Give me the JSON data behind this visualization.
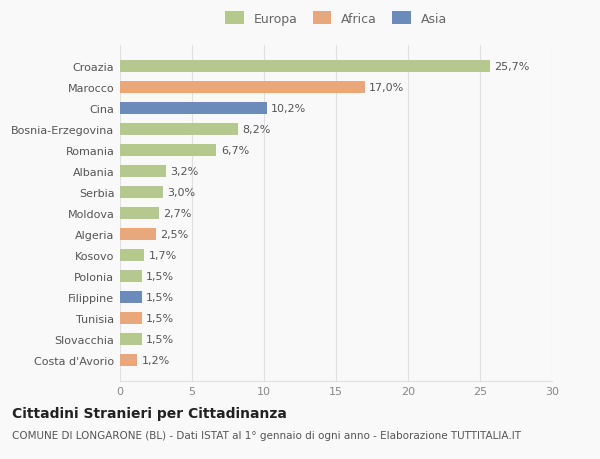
{
  "categories": [
    "Costa d'Avorio",
    "Slovacchia",
    "Tunisia",
    "Filippine",
    "Polonia",
    "Kosovo",
    "Algeria",
    "Moldova",
    "Serbia",
    "Albania",
    "Romania",
    "Bosnia-Erzegovina",
    "Cina",
    "Marocco",
    "Croazia"
  ],
  "values": [
    1.2,
    1.5,
    1.5,
    1.5,
    1.5,
    1.7,
    2.5,
    2.7,
    3.0,
    3.2,
    6.7,
    8.2,
    10.2,
    17.0,
    25.7
  ],
  "labels": [
    "1,2%",
    "1,5%",
    "1,5%",
    "1,5%",
    "1,5%",
    "1,7%",
    "2,5%",
    "2,7%",
    "3,0%",
    "3,2%",
    "6,7%",
    "8,2%",
    "10,2%",
    "17,0%",
    "25,7%"
  ],
  "colors": [
    "#e8a87c",
    "#b5c98e",
    "#e8a87c",
    "#6b8cba",
    "#b5c98e",
    "#b5c98e",
    "#e8a87c",
    "#b5c98e",
    "#b5c98e",
    "#b5c98e",
    "#b5c98e",
    "#b5c98e",
    "#6b8cba",
    "#e8a87c",
    "#b5c98e"
  ],
  "legend_labels": [
    "Europa",
    "Africa",
    "Asia"
  ],
  "legend_colors": [
    "#b5c98e",
    "#e8a87c",
    "#6b8cba"
  ],
  "title": "Cittadini Stranieri per Cittadinanza",
  "subtitle": "COMUNE DI LONGARONE (BL) - Dati ISTAT al 1° gennaio di ogni anno - Elaborazione TUTTITALIA.IT",
  "xlim": [
    0,
    30
  ],
  "xticks": [
    0,
    5,
    10,
    15,
    20,
    25,
    30
  ],
  "background_color": "#f9f9f9",
  "grid_color": "#e0e0e0",
  "bar_height": 0.55,
  "title_fontsize": 10,
  "subtitle_fontsize": 7.5,
  "label_fontsize": 8,
  "tick_fontsize": 8,
  "legend_fontsize": 9
}
